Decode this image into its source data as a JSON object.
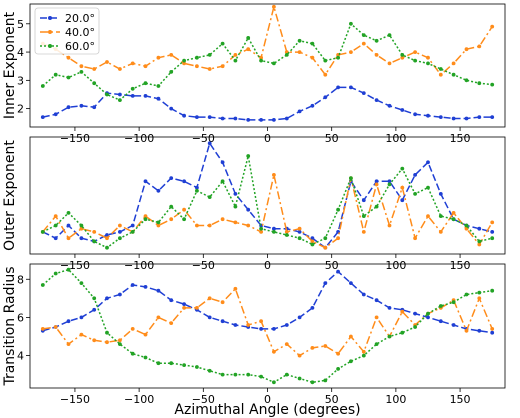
{
  "chart_data": {
    "type": "line",
    "shared_x": {
      "label": "Azimuthal Angle (degrees)",
      "ticks": [
        -150,
        -100,
        -50,
        0,
        50,
        100,
        150
      ],
      "values": [
        -175,
        -165,
        -155,
        -145,
        -135,
        -125,
        -115,
        -105,
        -95,
        -85,
        -75,
        -65,
        -55,
        -45,
        -35,
        -25,
        -15,
        -5,
        5,
        15,
        25,
        35,
        45,
        55,
        65,
        75,
        85,
        95,
        105,
        115,
        125,
        135,
        145,
        155,
        165,
        175
      ],
      "xlim": [
        -185,
        185
      ]
    },
    "colors": {
      "20.0°": "#1f3fd4",
      "40.0°": "#ff8c1a",
      "60.0°": "#22a325"
    },
    "legend": {
      "location": "upper-left",
      "panel": 1,
      "entries": [
        "20.0°",
        "40.0°",
        "60.0°"
      ]
    },
    "panels": [
      {
        "ylabel": "Inner Exponent",
        "ylim": [
          1.35,
          5.7
        ],
        "yticks": [
          2,
          3,
          4,
          5
        ],
        "series": [
          {
            "label": "20.0°",
            "style": "dashed",
            "values": [
              1.7,
              1.8,
              2.05,
              2.1,
              2.05,
              2.55,
              2.5,
              2.45,
              2.45,
              2.35,
              2.0,
              1.75,
              1.7,
              1.7,
              1.65,
              1.65,
              1.6,
              1.6,
              1.6,
              1.65,
              1.9,
              2.1,
              2.4,
              2.75,
              2.75,
              2.55,
              2.3,
              2.1,
              1.95,
              1.8,
              1.75,
              1.7,
              1.65,
              1.65,
              1.7,
              1.7
            ]
          },
          {
            "label": "40.0°",
            "style": "dashdot",
            "values": [
              4.3,
              4.1,
              3.8,
              3.5,
              3.4,
              3.65,
              3.4,
              3.6,
              3.5,
              3.8,
              3.9,
              3.6,
              3.5,
              3.4,
              3.5,
              3.9,
              4.1,
              3.8,
              5.6,
              4.0,
              4.0,
              3.8,
              3.2,
              3.9,
              4.0,
              4.3,
              3.9,
              3.6,
              3.8,
              4.0,
              3.8,
              3.2,
              3.6,
              4.1,
              4.2,
              4.9
            ]
          },
          {
            "label": "60.0°",
            "style": "dotted",
            "values": [
              2.8,
              3.2,
              3.1,
              3.3,
              2.9,
              2.5,
              2.3,
              2.7,
              2.9,
              2.8,
              3.3,
              3.7,
              3.8,
              3.9,
              4.3,
              3.7,
              4.5,
              3.7,
              3.6,
              3.9,
              4.4,
              4.3,
              3.7,
              3.8,
              5.0,
              4.6,
              4.4,
              4.6,
              3.9,
              3.7,
              3.6,
              3.4,
              3.2,
              3.0,
              2.9,
              2.85
            ]
          }
        ]
      },
      {
        "ylabel": "Outer Exponent",
        "ylim": [
          13,
          50
        ],
        "yticks": [],
        "series": [
          {
            "label": "20.0°",
            "style": "dashed",
            "values": [
              20,
              18,
              22,
              18,
              17,
              19,
              20,
              22,
              36,
              33,
              37,
              36,
              34,
              48,
              42,
              32,
              27,
              22,
              21,
              21,
              20,
              18,
              15,
              20,
              36,
              30,
              36,
              36,
              30,
              38,
              42,
              32,
              24,
              22,
              21,
              20
            ]
          },
          {
            "label": "40.0°",
            "style": "dashdot",
            "values": [
              20,
              25,
              18,
              21,
              20,
              18,
              22,
              20,
              25,
              22,
              24,
              27,
              22,
              22,
              24,
              23,
              22,
              20,
              38,
              20,
              21,
              17,
              15,
              18,
              37,
              20,
              35,
              22,
              34,
              18,
              25,
              20,
              26,
              21,
              16,
              23
            ]
          },
          {
            "label": "60.0°",
            "style": "dotted",
            "values": [
              20,
              22,
              26,
              22,
              17,
              15,
              18,
              20,
              24,
              23,
              28,
              24,
              33,
              31,
              36,
              28,
              44,
              21,
              20,
              19,
              18,
              16,
              18,
              27,
              37,
              25,
              28,
              35,
              40,
              32,
              34,
              25,
              24,
              22,
              17,
              18
            ]
          }
        ]
      },
      {
        "ylabel": "Transition Radius",
        "ylim": [
          2.3,
          8.8
        ],
        "yticks": [
          4,
          6,
          8
        ],
        "series": [
          {
            "label": "20.0°",
            "style": "dashed",
            "values": [
              5.3,
              5.5,
              5.8,
              6.0,
              6.4,
              7.0,
              7.2,
              7.7,
              7.6,
              7.4,
              6.9,
              6.7,
              6.4,
              6.0,
              5.8,
              5.6,
              5.5,
              5.4,
              5.4,
              5.6,
              6.0,
              6.5,
              7.8,
              8.4,
              7.8,
              7.2,
              6.9,
              6.5,
              6.4,
              6.2,
              6.0,
              5.8,
              5.6,
              5.4,
              5.3,
              5.2
            ]
          },
          {
            "label": "40.0°",
            "style": "dashdot",
            "values": [
              5.4,
              5.5,
              4.6,
              5.1,
              4.8,
              4.7,
              4.8,
              5.4,
              5.1,
              6.0,
              5.7,
              6.5,
              6.5,
              7.0,
              6.8,
              7.5,
              5.6,
              5.8,
              4.2,
              4.6,
              4.0,
              4.4,
              4.5,
              4.1,
              5.0,
              4.2,
              6.0,
              5.0,
              6.3,
              5.6,
              6.2,
              6.5,
              6.9,
              5.3,
              7.0,
              5.4
            ]
          },
          {
            "label": "60.0°",
            "style": "dotted",
            "values": [
              7.7,
              8.3,
              8.5,
              7.8,
              7.0,
              5.2,
              4.6,
              4.1,
              3.9,
              3.6,
              3.6,
              3.5,
              3.4,
              3.2,
              3.0,
              3.0,
              3.0,
              2.9,
              2.6,
              3.0,
              2.8,
              2.6,
              2.7,
              3.3,
              3.7,
              4.0,
              4.6,
              5.0,
              5.2,
              5.5,
              6.2,
              6.6,
              6.8,
              7.2,
              7.3,
              7.4
            ]
          }
        ]
      }
    ]
  }
}
